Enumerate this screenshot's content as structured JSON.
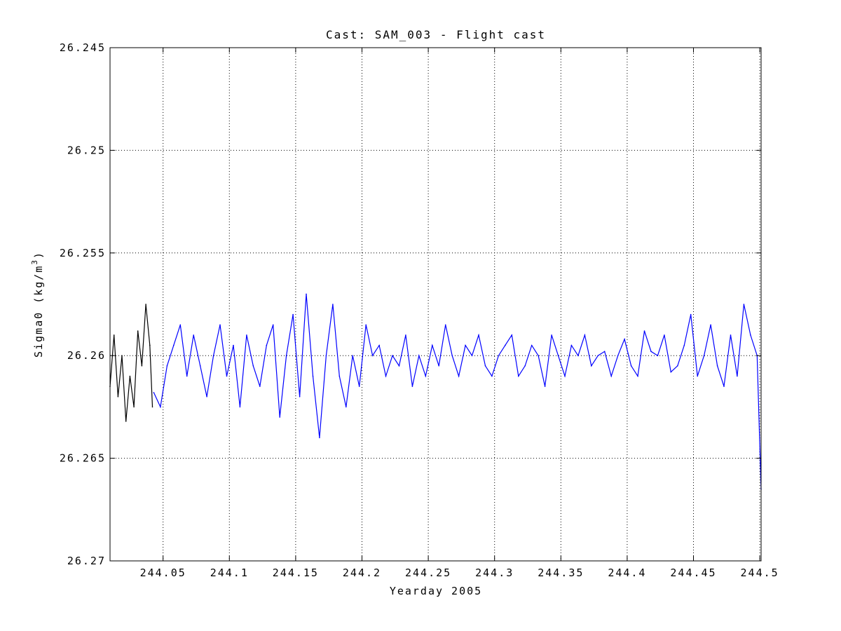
{
  "chart_data": {
    "type": "line",
    "title": "Cast: SAM_003 - Flight cast",
    "xlabel": "Yearday 2005",
    "ylabel": "Sigma0 (kg/m",
    "ylabel_sup": "3",
    "ylabel_end": ")",
    "xlim": [
      244.01,
      244.501
    ],
    "ylim": [
      26.245,
      26.27
    ],
    "y_reversed": true,
    "grid": true,
    "x_ticks": [
      244.05,
      244.1,
      244.15,
      244.2,
      244.25,
      244.3,
      244.35,
      244.4,
      244.45,
      244.5
    ],
    "x_tick_labels": [
      "244.05",
      "244.1",
      "244.15",
      "244.2",
      "244.25",
      "244.3",
      "244.35",
      "244.4",
      "244.45",
      "244.5"
    ],
    "y_ticks": [
      26.245,
      26.25,
      26.255,
      26.26,
      26.265,
      26.27
    ],
    "y_tick_labels": [
      "26.245",
      "26.25",
      "26.255",
      "26.26",
      "26.265",
      "26.27"
    ],
    "series": [
      {
        "color": "#000000",
        "x": [
          244.01,
          244.013,
          244.016,
          244.019,
          244.022,
          244.025,
          244.028,
          244.031,
          244.034,
          244.037,
          244.04,
          244.042
        ],
        "y": [
          26.2615,
          26.259,
          26.262,
          26.26,
          26.2632,
          26.261,
          26.2625,
          26.2588,
          26.2605,
          26.2575,
          26.2595,
          26.2625
        ]
      },
      {
        "color": "#0000ff",
        "x": [
          244.043,
          244.048,
          244.053,
          244.058,
          244.063,
          244.068,
          244.073,
          244.078,
          244.083,
          244.088,
          244.093,
          244.098,
          244.103,
          244.108,
          244.113,
          244.118,
          244.123,
          244.128,
          244.133,
          244.138,
          244.143,
          244.148,
          244.153,
          244.158,
          244.163,
          244.168,
          244.173,
          244.178,
          244.183,
          244.188,
          244.193,
          244.198,
          244.203,
          244.208,
          244.213,
          244.218,
          244.223,
          244.228,
          244.233,
          244.238,
          244.243,
          244.248,
          244.253,
          244.258,
          244.263,
          244.268,
          244.273,
          244.278,
          244.283,
          244.288,
          244.293,
          244.298,
          244.303,
          244.308,
          244.313,
          244.318,
          244.323,
          244.328,
          244.333,
          244.338,
          244.343,
          244.348,
          244.353,
          244.358,
          244.363,
          244.368,
          244.373,
          244.378,
          244.383,
          244.388,
          244.393,
          244.398,
          244.403,
          244.408,
          244.413,
          244.418,
          244.423,
          244.428,
          244.433,
          244.438,
          244.443,
          244.448,
          244.453,
          244.458,
          244.463,
          244.468,
          244.473,
          244.478,
          244.483,
          244.488,
          244.493,
          244.498,
          244.501
        ],
        "y": [
          26.2618,
          26.2625,
          26.2605,
          26.2595,
          26.2585,
          26.261,
          26.259,
          26.2605,
          26.262,
          26.26,
          26.2585,
          26.261,
          26.2595,
          26.2625,
          26.259,
          26.2605,
          26.2615,
          26.2595,
          26.2585,
          26.263,
          26.26,
          26.258,
          26.262,
          26.257,
          26.261,
          26.264,
          26.26,
          26.2575,
          26.261,
          26.2625,
          26.26,
          26.2615,
          26.2585,
          26.26,
          26.2595,
          26.261,
          26.26,
          26.2605,
          26.259,
          26.2615,
          26.26,
          26.261,
          26.2595,
          26.2605,
          26.2585,
          26.26,
          26.261,
          26.2595,
          26.26,
          26.259,
          26.2605,
          26.261,
          26.26,
          26.2595,
          26.259,
          26.261,
          26.2605,
          26.2595,
          26.26,
          26.2615,
          26.259,
          26.26,
          26.261,
          26.2595,
          26.26,
          26.259,
          26.2605,
          26.26,
          26.2598,
          26.261,
          26.26,
          26.2592,
          26.2605,
          26.261,
          26.2588,
          26.2598,
          26.26,
          26.259,
          26.2608,
          26.2605,
          26.2595,
          26.258,
          26.261,
          26.26,
          26.2585,
          26.2605,
          26.2615,
          26.259,
          26.261,
          26.2575,
          26.259,
          26.26,
          26.2665
        ]
      }
    ]
  }
}
